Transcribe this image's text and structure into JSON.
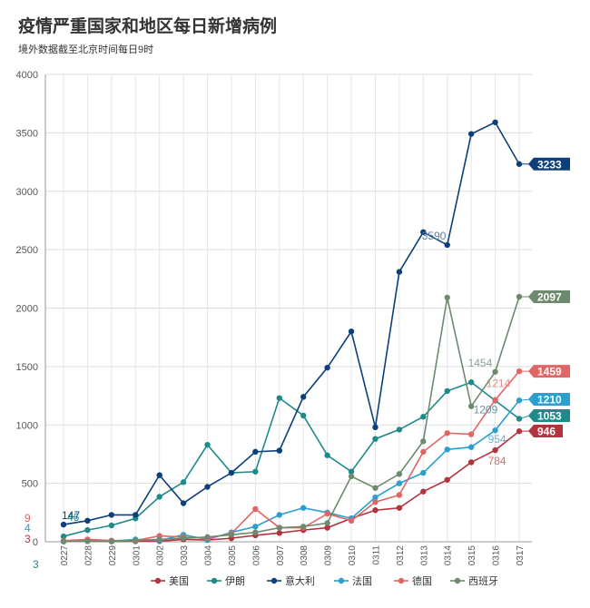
{
  "header": {
    "title": "疫情严重国家和地区每日新增病例",
    "subtitle": "境外数据截至北京时间每日9时"
  },
  "chart_data": {
    "type": "line",
    "title": "疫情严重国家和地区每日新增病例",
    "subtitle": "境外数据截至北京时间每日9时",
    "xlabel": "",
    "ylabel": "",
    "ylim": [
      0,
      4000
    ],
    "yticks": [
      0,
      500,
      1000,
      1500,
      2000,
      2500,
      3000,
      3500,
      4000
    ],
    "grid": true,
    "legend": "bottom",
    "categories": [
      "0227",
      "0228",
      "0229",
      "0301",
      "0302",
      "0303",
      "0304",
      "0305",
      "0306",
      "0307",
      "0308",
      "0309",
      "0310",
      "0311",
      "0312",
      "0313",
      "0314",
      "0315",
      "0316",
      "0317"
    ],
    "series": [
      {
        "name": "美国",
        "color": "#b3343f",
        "values": [
          3,
          5,
          3,
          4,
          5,
          20,
          15,
          30,
          55,
          75,
          100,
          120,
          200,
          270,
          290,
          430,
          530,
          680,
          784,
          946
        ],
        "end_label": "946"
      },
      {
        "name": "伊朗",
        "color": "#1e8a8a",
        "values": [
          46,
          100,
          140,
          200,
          385,
          510,
          830,
          590,
          600,
          1230,
          1080,
          740,
          600,
          880,
          960,
          1070,
          1290,
          1365,
          1209,
          1053
        ],
        "end_label": "1053"
      },
      {
        "name": "意大利",
        "color": "#0d3f7a",
        "values": [
          147,
          180,
          230,
          230,
          570,
          330,
          470,
          590,
          770,
          780,
          1240,
          1490,
          1800,
          980,
          2310,
          2650,
          2540,
          3490,
          3590,
          3233
        ],
        "end_label": "3233"
      },
      {
        "name": "法国",
        "color": "#2a9fd0",
        "values": [
          4,
          5,
          5,
          20,
          10,
          60,
          20,
          80,
          130,
          230,
          290,
          250,
          200,
          380,
          500,
          590,
          790,
          810,
          954,
          1210
        ],
        "end_label": "1210"
      },
      {
        "name": "德国",
        "color": "#e06565",
        "values": [
          9,
          20,
          10,
          10,
          50,
          40,
          30,
          70,
          280,
          120,
          120,
          240,
          180,
          340,
          400,
          770,
          930,
          920,
          1214,
          1459
        ],
        "end_label": "1459"
      },
      {
        "name": "西班牙",
        "color": "#6e8a6e",
        "values": [
          3,
          5,
          5,
          10,
          20,
          30,
          40,
          60,
          80,
          120,
          130,
          160,
          560,
          460,
          580,
          860,
          2090,
          1160,
          1454,
          2097
        ],
        "end_label": "2097"
      }
    ],
    "annotations": [
      "147",
      "46",
      "9",
      "4",
      "3",
      "3",
      "3590",
      "1454",
      "1214",
      "1209",
      "954",
      "784"
    ]
  }
}
